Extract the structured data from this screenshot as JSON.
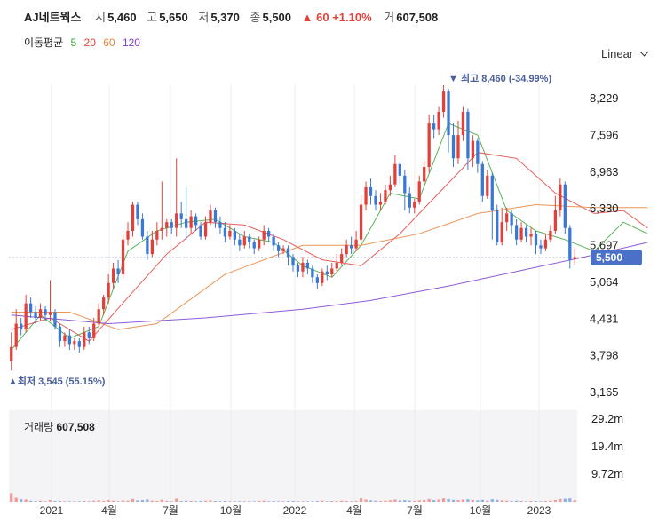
{
  "header": {
    "name": "AJ네트웍스",
    "open_label": "시",
    "open": "5,460",
    "high_label": "고",
    "high": "5,650",
    "low_label": "저",
    "low": "5,370",
    "close_label": "종",
    "close": "5,500",
    "change": "▲ 60 +1.10%",
    "volume_label": "거",
    "volume": "607,508"
  },
  "ma_legend": {
    "label": "이동평균",
    "items": [
      {
        "period": "5",
        "color": "#3aa63a"
      },
      {
        "period": "20",
        "color": "#e2413b"
      },
      {
        "period": "60",
        "color": "#e8833a"
      },
      {
        "period": "120",
        "color": "#7a3fd1"
      }
    ]
  },
  "scale_button": {
    "label": "Linear",
    "icon": "chevron-down-icon"
  },
  "annotations": {
    "high": "▼ 최고  8,460 (-34.99%)",
    "low": "▲최저  3,545 (55.15%)"
  },
  "last_price": "5,500",
  "volume_title": {
    "label": "거래량",
    "value": "607,508"
  },
  "colors": {
    "up": "#e2413b",
    "down": "#3b78d4"
  },
  "chart_data": {
    "type": "candlestick",
    "x_labels": [
      "2021",
      "4월",
      "7월",
      "10월",
      "2022",
      "4월",
      "7월",
      "10월",
      "2023"
    ],
    "y_ticks": [
      "8,229",
      "7,596",
      "6,963",
      "6,330",
      "5,697",
      "5,064",
      "4,431",
      "3,798",
      "3,165"
    ],
    "ylim": [
      3165,
      8229
    ],
    "volume_ticks": [
      "29.2m",
      "19.4m",
      "9.72m"
    ],
    "volume_ylim": [
      0,
      29.2
    ],
    "high": 8460,
    "low": 3545,
    "last": 5500,
    "candles": [
      [
        3700,
        3950,
        3545,
        4200
      ],
      [
        3950,
        4350,
        3900,
        4600
      ],
      [
        4350,
        4250,
        4150,
        4450
      ],
      [
        4250,
        4700,
        4200,
        4850
      ],
      [
        4700,
        4550,
        4450,
        4800
      ],
      [
        4550,
        4450,
        4350,
        4650
      ],
      [
        4450,
        4600,
        4400,
        4700
      ],
      [
        4600,
        4500,
        4400,
        4650
      ],
      [
        4500,
        4550,
        4400,
        5100
      ],
      [
        4550,
        4300,
        4250,
        4600
      ],
      [
        4300,
        4050,
        3950,
        4350
      ],
      [
        4050,
        4150,
        3950,
        4200
      ],
      [
        4150,
        4000,
        3900,
        4250
      ],
      [
        4000,
        4050,
        3900,
        4100
      ],
      [
        4050,
        3950,
        3850,
        4100
      ],
      [
        3950,
        4200,
        3900,
        4300
      ],
      [
        4200,
        4100,
        4000,
        4300
      ],
      [
        4100,
        4350,
        4050,
        4450
      ],
      [
        4350,
        4600,
        4300,
        4700
      ],
      [
        4600,
        4800,
        4500,
        4850
      ],
      [
        4800,
        5050,
        4700,
        5200
      ],
      [
        5050,
        5300,
        4950,
        5400
      ],
      [
        5300,
        5200,
        5050,
        5450
      ],
      [
        5200,
        5800,
        5150,
        5900
      ],
      [
        5800,
        5950,
        5700,
        6100
      ],
      [
        5950,
        6400,
        5850,
        6450
      ],
      [
        6400,
        6150,
        6050,
        6450
      ],
      [
        6150,
        5850,
        5800,
        6250
      ],
      [
        5850,
        5550,
        5450,
        5950
      ],
      [
        5550,
        5800,
        5500,
        5950
      ],
      [
        5800,
        5950,
        5700,
        6100
      ],
      [
        5950,
        6000,
        5800,
        6800
      ],
      [
        6000,
        6100,
        5850,
        6150
      ],
      [
        6100,
        6000,
        5900,
        6150
      ],
      [
        6000,
        6250,
        5850,
        7200
      ],
      [
        6250,
        6150,
        6000,
        6450
      ],
      [
        6150,
        6000,
        5800,
        6700
      ],
      [
        6000,
        6200,
        5900,
        6300
      ],
      [
        6200,
        6050,
        5950,
        6250
      ],
      [
        6050,
        5850,
        5800,
        6100
      ],
      [
        5850,
        6100,
        5800,
        6200
      ],
      [
        6100,
        6300,
        6050,
        6400
      ],
      [
        6300,
        6100,
        6000,
        6350
      ],
      [
        6100,
        6000,
        5900,
        6200
      ],
      [
        6000,
        5850,
        5750,
        6100
      ],
      [
        5850,
        5950,
        5800,
        6050
      ],
      [
        5950,
        5800,
        5700,
        6000
      ],
      [
        5800,
        5700,
        5600,
        5900
      ],
      [
        5700,
        5850,
        5650,
        5950
      ],
      [
        5850,
        5750,
        5650,
        5900
      ],
      [
        5750,
        5650,
        5550,
        5800
      ],
      [
        5650,
        5800,
        5600,
        5850
      ],
      [
        5800,
        5950,
        5700,
        6050
      ],
      [
        5950,
        5850,
        5750,
        6000
      ],
      [
        5850,
        5700,
        5600,
        5900
      ],
      [
        5700,
        5600,
        5500,
        5750
      ],
      [
        5600,
        5650,
        5550,
        5700
      ],
      [
        5650,
        5500,
        5350,
        5700
      ],
      [
        5500,
        5350,
        5250,
        5550
      ],
      [
        5350,
        5250,
        5150,
        5400
      ],
      [
        5250,
        5400,
        5150,
        5500
      ],
      [
        5400,
        5300,
        5200,
        5450
      ],
      [
        5300,
        5150,
        5050,
        5350
      ],
      [
        5150,
        5050,
        4950,
        5200
      ],
      [
        5050,
        5250,
        5000,
        5300
      ],
      [
        5250,
        5200,
        5100,
        5350
      ],
      [
        5200,
        5300,
        5150,
        5400
      ],
      [
        5300,
        5400,
        5250,
        5550
      ],
      [
        5400,
        5550,
        5350,
        5650
      ],
      [
        5550,
        5700,
        5500,
        5800
      ],
      [
        5700,
        5650,
        5550,
        5850
      ],
      [
        5650,
        5800,
        5600,
        5950
      ],
      [
        5800,
        6400,
        5750,
        6550
      ],
      [
        6400,
        6700,
        6300,
        6800
      ],
      [
        6700,
        6550,
        6400,
        6850
      ],
      [
        6550,
        6400,
        6300,
        6650
      ],
      [
        6400,
        6450,
        6300,
        6600
      ],
      [
        6450,
        6650,
        6400,
        6750
      ],
      [
        6650,
        6750,
        6550,
        6900
      ],
      [
        6750,
        7100,
        6700,
        7250
      ],
      [
        7100,
        6900,
        6750,
        7150
      ],
      [
        6900,
        6600,
        6300,
        7000
      ],
      [
        6600,
        6350,
        6250,
        6700
      ],
      [
        6350,
        6450,
        6250,
        6500
      ],
      [
        6450,
        6800,
        6400,
        6900
      ],
      [
        6800,
        7050,
        6750,
        7150
      ],
      [
        7050,
        7800,
        6950,
        7950
      ],
      [
        7800,
        7700,
        7550,
        7950
      ],
      [
        7700,
        8000,
        7600,
        8100
      ],
      [
        8000,
        8350,
        7900,
        8460
      ],
      [
        8350,
        7600,
        7300,
        8400
      ],
      [
        7600,
        7200,
        7050,
        7800
      ],
      [
        7200,
        7600,
        7100,
        7850
      ],
      [
        7600,
        8000,
        7500,
        8100
      ],
      [
        8000,
        7200,
        7000,
        8050
      ],
      [
        7200,
        7500,
        7050,
        7600
      ],
      [
        7500,
        7100,
        6950,
        7550
      ],
      [
        7100,
        6550,
        6450,
        7150
      ],
      [
        6550,
        6900,
        6500,
        7000
      ],
      [
        6900,
        6300,
        5800,
        6950
      ],
      [
        6300,
        5750,
        5700,
        6400
      ],
      [
        5750,
        6100,
        5700,
        6350
      ],
      [
        6100,
        6250,
        5950,
        6350
      ],
      [
        6250,
        6050,
        5900,
        6300
      ],
      [
        6050,
        5800,
        5700,
        6150
      ],
      [
        5800,
        6000,
        5750,
        6100
      ],
      [
        6000,
        5850,
        5750,
        6050
      ],
      [
        5850,
        5900,
        5700,
        6000
      ],
      [
        5900,
        5700,
        5550,
        5950
      ],
      [
        5700,
        5650,
        5550,
        5800
      ],
      [
        5650,
        5800,
        5600,
        5900
      ],
      [
        5800,
        5950,
        5750,
        6050
      ],
      [
        5950,
        6300,
        5900,
        6550
      ],
      [
        6300,
        6750,
        6200,
        6850
      ],
      [
        6750,
        6000,
        5900,
        6800
      ],
      [
        6000,
        5450,
        5300,
        6050
      ],
      [
        5460,
        5500,
        5370,
        5650
      ]
    ],
    "ma": {
      "5": [
        [
          0,
          3900
        ],
        [
          6,
          4500
        ],
        [
          12,
          4100
        ],
        [
          18,
          4300
        ],
        [
          24,
          5600
        ],
        [
          30,
          5950
        ],
        [
          36,
          6100
        ],
        [
          42,
          6150
        ],
        [
          48,
          5850
        ],
        [
          54,
          5750
        ],
        [
          60,
          5350
        ],
        [
          66,
          5150
        ],
        [
          72,
          5700
        ],
        [
          78,
          6600
        ],
        [
          84,
          6500
        ],
        [
          90,
          7800
        ],
        [
          96,
          7600
        ],
        [
          102,
          6300
        ],
        [
          108,
          5950
        ],
        [
          114,
          5800
        ],
        [
          120,
          5600
        ],
        [
          126,
          6100
        ],
        [
          131,
          5900
        ]
      ],
      "20": [
        [
          0,
          4250
        ],
        [
          8,
          4450
        ],
        [
          16,
          4050
        ],
        [
          24,
          4800
        ],
        [
          32,
          5550
        ],
        [
          40,
          6100
        ],
        [
          48,
          6050
        ],
        [
          56,
          5800
        ],
        [
          64,
          5450
        ],
        [
          72,
          5350
        ],
        [
          80,
          5900
        ],
        [
          88,
          6600
        ],
        [
          96,
          7300
        ],
        [
          104,
          7200
        ],
        [
          112,
          6600
        ],
        [
          120,
          6250
        ],
        [
          126,
          6300
        ],
        [
          131,
          6000
        ]
      ],
      "60": [
        [
          0,
          4550
        ],
        [
          12,
          4550
        ],
        [
          22,
          4250
        ],
        [
          30,
          4350
        ],
        [
          44,
          5200
        ],
        [
          60,
          5700
        ],
        [
          72,
          5700
        ],
        [
          84,
          5900
        ],
        [
          96,
          6250
        ],
        [
          108,
          6400
        ],
        [
          120,
          6350
        ],
        [
          131,
          6350
        ]
      ],
      "120": [
        [
          0,
          4500
        ],
        [
          20,
          4350
        ],
        [
          40,
          4450
        ],
        [
          60,
          4600
        ],
        [
          74,
          4750
        ],
        [
          90,
          5000
        ],
        [
          104,
          5250
        ],
        [
          118,
          5500
        ],
        [
          131,
          5750
        ]
      ]
    },
    "volume": [
      [
        3.0,
        1
      ],
      [
        1.4,
        1
      ],
      [
        0.9,
        0
      ],
      [
        0.8,
        1
      ],
      [
        0.4,
        0
      ],
      [
        0.3,
        0
      ],
      [
        0.4,
        1
      ],
      [
        0.2,
        0
      ],
      [
        0.6,
        1
      ],
      [
        0.3,
        0
      ],
      [
        0.3,
        0
      ],
      [
        0.2,
        1
      ],
      [
        0.2,
        0
      ],
      [
        0.2,
        1
      ],
      [
        0.2,
        0
      ],
      [
        0.3,
        1
      ],
      [
        0.2,
        0
      ],
      [
        0.4,
        1
      ],
      [
        0.5,
        1
      ],
      [
        0.3,
        1
      ],
      [
        0.6,
        1
      ],
      [
        0.4,
        1
      ],
      [
        0.2,
        0
      ],
      [
        0.5,
        1
      ],
      [
        0.4,
        1
      ],
      [
        1.0,
        1
      ],
      [
        0.5,
        0
      ],
      [
        0.6,
        0
      ],
      [
        0.8,
        0
      ],
      [
        0.4,
        1
      ],
      [
        0.3,
        1
      ],
      [
        0.7,
        1
      ],
      [
        0.3,
        1
      ],
      [
        0.2,
        0
      ],
      [
        1.1,
        1
      ],
      [
        0.3,
        0
      ],
      [
        0.4,
        0
      ],
      [
        0.3,
        1
      ],
      [
        0.2,
        0
      ],
      [
        0.3,
        0
      ],
      [
        0.4,
        1
      ],
      [
        0.5,
        1
      ],
      [
        0.3,
        0
      ],
      [
        0.2,
        0
      ],
      [
        0.3,
        0
      ],
      [
        0.2,
        1
      ],
      [
        0.2,
        0
      ],
      [
        0.2,
        0
      ],
      [
        0.2,
        1
      ],
      [
        0.2,
        0
      ],
      [
        0.2,
        0
      ],
      [
        0.3,
        1
      ],
      [
        0.4,
        1
      ],
      [
        0.2,
        0
      ],
      [
        0.3,
        0
      ],
      [
        0.2,
        0
      ],
      [
        0.2,
        1
      ],
      [
        0.3,
        0
      ],
      [
        0.3,
        0
      ],
      [
        0.2,
        0
      ],
      [
        0.2,
        1
      ],
      [
        0.2,
        0
      ],
      [
        0.2,
        0
      ],
      [
        0.3,
        0
      ],
      [
        0.4,
        1
      ],
      [
        0.2,
        0
      ],
      [
        0.3,
        1
      ],
      [
        0.3,
        1
      ],
      [
        0.4,
        1
      ],
      [
        0.3,
        1
      ],
      [
        0.2,
        0
      ],
      [
        0.3,
        1
      ],
      [
        1.2,
        1
      ],
      [
        0.8,
        1
      ],
      [
        0.5,
        0
      ],
      [
        0.4,
        0
      ],
      [
        0.3,
        1
      ],
      [
        0.4,
        1
      ],
      [
        0.5,
        1
      ],
      [
        0.8,
        1
      ],
      [
        0.5,
        0
      ],
      [
        0.6,
        0
      ],
      [
        0.4,
        0
      ],
      [
        0.3,
        1
      ],
      [
        0.5,
        1
      ],
      [
        0.6,
        1
      ],
      [
        1.0,
        1
      ],
      [
        0.6,
        0
      ],
      [
        0.8,
        1
      ],
      [
        1.2,
        1
      ],
      [
        1.0,
        0
      ],
      [
        0.7,
        0
      ],
      [
        0.6,
        1
      ],
      [
        0.8,
        1
      ],
      [
        0.9,
        0
      ],
      [
        0.6,
        1
      ],
      [
        0.5,
        0
      ],
      [
        0.7,
        0
      ],
      [
        0.4,
        1
      ],
      [
        0.9,
        0
      ],
      [
        0.7,
        0
      ],
      [
        0.5,
        1
      ],
      [
        0.4,
        1
      ],
      [
        0.3,
        0
      ],
      [
        0.4,
        0
      ],
      [
        0.3,
        1
      ],
      [
        0.2,
        0
      ],
      [
        0.3,
        1
      ],
      [
        0.3,
        0
      ],
      [
        0.2,
        0
      ],
      [
        0.3,
        1
      ],
      [
        0.4,
        1
      ],
      [
        0.6,
        1
      ],
      [
        1.0,
        1
      ],
      [
        1.1,
        0
      ],
      [
        1.2,
        0
      ],
      [
        0.6,
        1
      ]
    ]
  }
}
